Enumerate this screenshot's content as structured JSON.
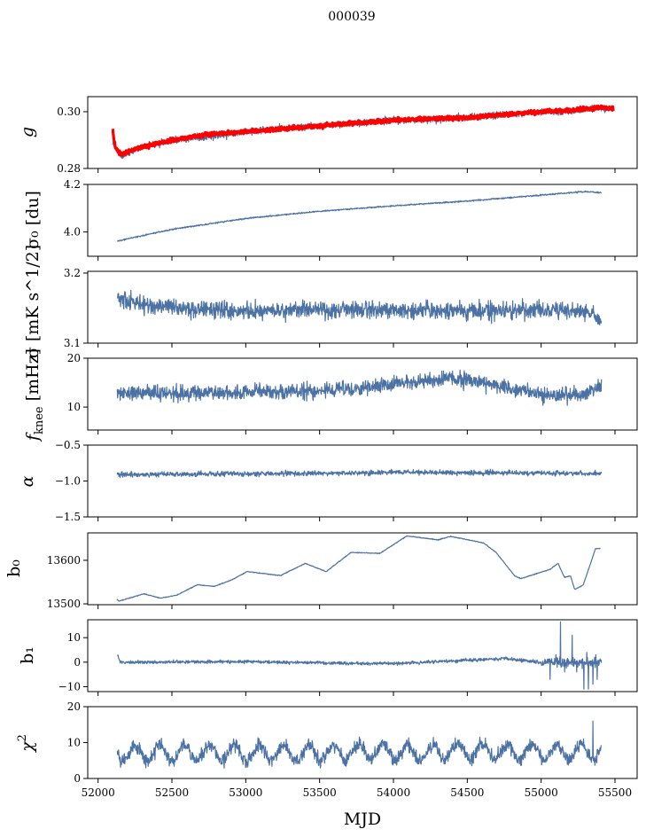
{
  "title": "000039",
  "chart_data": {
    "type": "line",
    "title": "000039",
    "xlabel": "MJD",
    "xlim": [
      51930,
      55650
    ],
    "xticks": [
      52000,
      52500,
      53000,
      53500,
      54000,
      54500,
      55000,
      55500
    ],
    "xtick_labels": [
      "52000",
      "52500",
      "53000",
      "53500",
      "54000",
      "54500",
      "55000",
      "55500"
    ],
    "colors": {
      "series": "#4c72a4",
      "fit": "#ff0000"
    },
    "panels": [
      {
        "id": "g",
        "ylabel": "g",
        "ylim": [
          0.28,
          0.3053
        ],
        "yticks": [
          0.28,
          0.3
        ],
        "ytick_labels": [
          "0.28",
          "0.30"
        ],
        "series": [
          {
            "name": "g",
            "color": "#4c72a4",
            "noise": 0.0009,
            "x": [
              52100,
              52130,
              52160,
              52250,
              52500,
              52750,
              53000,
              53250,
              53500,
              53750,
              54000,
              54250,
              54500,
              54750,
              55000,
              55200,
              55400,
              55490
            ],
            "y": [
              0.289,
              0.286,
              0.284,
              0.287,
              0.29,
              0.291,
              0.293,
              0.294,
              0.295,
              0.296,
              0.297,
              0.297,
              0.298,
              0.299,
              0.3,
              0.3,
              0.3015,
              0.301
            ]
          },
          {
            "name": "g fit",
            "color": "#ff0000",
            "noise": 0.0005,
            "x": [
              52100,
              52110,
              52130,
              52160,
              52250,
              52500,
              52750,
              53000,
              53250,
              53500,
              53750,
              54000,
              54250,
              54500,
              54750,
              55000,
              55200,
              55400,
              55490
            ],
            "y": [
              0.294,
              0.289,
              0.286,
              0.285,
              0.287,
              0.29,
              0.292,
              0.293,
              0.294,
              0.295,
              0.296,
              0.297,
              0.2975,
              0.298,
              0.299,
              0.3,
              0.3005,
              0.3015,
              0.301
            ]
          }
        ]
      },
      {
        "id": "sigma0",
        "ylabel": "σ₀ [du]",
        "ylim": [
          3.898,
          4.2
        ],
        "yticks": [
          4.0,
          4.2
        ],
        "ytick_labels": [
          "4.0",
          "4.2"
        ],
        "series": [
          {
            "name": "sigma0",
            "color": "#4c72a4",
            "noise": 0.002,
            "x": [
              52130,
              52500,
              53000,
              53500,
              54000,
              54500,
              55000,
              55300,
              55410
            ],
            "y": [
              3.962,
              4.011,
              4.057,
              4.087,
              4.11,
              4.13,
              4.155,
              4.17,
              4.165
            ]
          }
        ]
      },
      {
        "id": "sigma",
        "ylabel": "σ [mK s^1/2]",
        "ylim": [
          3.1,
          3.2025
        ],
        "yticks": [
          3.1,
          3.2
        ],
        "ytick_labels": [
          "3.1",
          "3.2"
        ],
        "series": [
          {
            "name": "sigma",
            "color": "#4c72a4",
            "noise": 0.009,
            "x": [
              52130,
              52200,
              52400,
              53000,
              53500,
              54000,
              54500,
              55000,
              55300,
              55410
            ],
            "y": [
              3.168,
              3.16,
              3.152,
              3.145,
              3.148,
              3.147,
              3.146,
              3.147,
              3.145,
              3.135
            ]
          }
        ]
      },
      {
        "id": "fknee",
        "ylabel": "f_knee [mHz]",
        "ylim": [
          5.3,
          20
        ],
        "yticks": [
          10,
          20
        ],
        "ytick_labels": [
          "10",
          "20"
        ],
        "series": [
          {
            "name": "fknee",
            "color": "#4c72a4",
            "noise": 1.1,
            "x": [
              52130,
              52500,
              53000,
              53500,
              53800,
              54100,
              54400,
              54700,
              55000,
              55200,
              55300,
              55410
            ],
            "y": [
              13,
              12.8,
              13,
              13.3,
              14,
              15,
              16,
              14.5,
              12.5,
              12.5,
              12.5,
              14.5
            ]
          }
        ]
      },
      {
        "id": "alpha",
        "ylabel": "α",
        "ylim": [
          -1.5,
          -0.5
        ],
        "yticks": [
          -1.5,
          -1.0,
          -0.5
        ],
        "ytick_labels": [
          "−1.5",
          "−1.0",
          "−0.5"
        ],
        "series": [
          {
            "name": "alpha",
            "color": "#4c72a4",
            "noise": 0.025,
            "x": [
              52130,
              53000,
              54000,
              55000,
              55410
            ],
            "y": [
              -0.91,
              -0.9,
              -0.88,
              -0.89,
              -0.9
            ]
          }
        ]
      },
      {
        "id": "b0",
        "ylabel": "b₀",
        "ylim": [
          13498,
          13663
        ],
        "yticks": [
          13500,
          13600
        ],
        "ytick_labels": [
          "13500",
          "13600"
        ],
        "series": [
          {
            "name": "b0",
            "color": "#4c72a4",
            "noise": 0.6,
            "x": [
              52126,
              52140,
              52309,
              52421,
              52533,
              52674,
              52786,
              52898,
              53010,
              53235,
              53403,
              53544,
              53712,
              53909,
              54091,
              54302,
              54386,
              54610,
              54695,
              54821,
              54863,
              55059,
              55115,
              55157,
              55199,
              55227,
              55284,
              55326,
              55368,
              55402
            ],
            "y": [
              13511,
              13506,
              13523,
              13513,
              13520,
              13544,
              13540,
              13554,
              13574,
              13565,
              13593,
              13574,
              13618,
              13616,
              13656,
              13647,
              13655,
              13640,
              13618,
              13564,
              13558,
              13579,
              13593,
              13561,
              13564,
              13533,
              13543,
              13584,
              13627,
              13627
            ]
          }
        ]
      },
      {
        "id": "b1",
        "ylabel": "b₁",
        "ylim": [
          -12,
          17.3
        ],
        "yticks": [
          -10,
          0,
          10
        ],
        "ytick_labels": [
          "−10",
          "0",
          "10"
        ],
        "series": [
          {
            "name": "b1",
            "color": "#4c72a4",
            "noise": 0.45,
            "x": [
              52130,
              52150,
              53000,
              53700,
              54000,
              54750,
              55000,
              55410
            ],
            "y": [
              3.5,
              0,
              0.2,
              -0.5,
              -0.6,
              1.5,
              0,
              0
            ],
            "spikes": [
              [
                55060,
                -7
              ],
              [
                55100,
                3
              ],
              [
                55130,
                16.5
              ],
              [
                55160,
                -4
              ],
              [
                55210,
                11
              ],
              [
                55240,
                -4
              ],
              [
                55290,
                -11
              ],
              [
                55310,
                4
              ],
              [
                55320,
                -11
              ],
              [
                55350,
                -9
              ],
              [
                55370,
                3
              ],
              [
                55380,
                -7
              ]
            ]
          }
        ]
      },
      {
        "id": "chi2",
        "ylabel": "χ²",
        "ylim": [
          0,
          20
        ],
        "yticks": [
          0,
          10,
          20
        ],
        "ytick_labels": [
          "0",
          "10",
          "20"
        ],
        "series": [
          {
            "name": "chi2",
            "color": "#4c72a4",
            "noise": 1.3,
            "x": [
              52130,
              55410
            ],
            "y": [
              7,
              7.5
            ],
            "seasonal": {
              "period_days": 168,
              "amplitude": 2.2,
              "peak_mjd": 52250
            },
            "spikes": [
              [
                55350,
                16
              ]
            ]
          }
        ]
      }
    ]
  }
}
